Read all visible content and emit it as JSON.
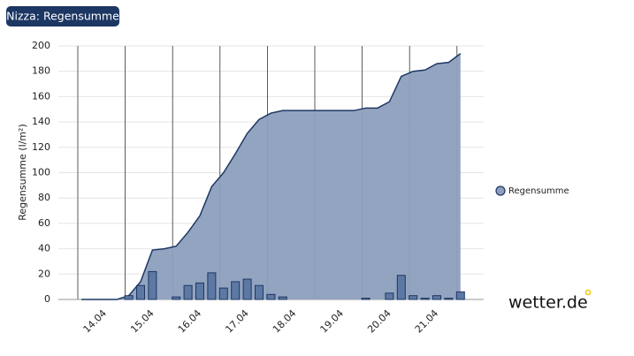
{
  "chart_data": {
    "type": "combo",
    "title": "Nizza: Regensumme",
    "y_label": "Regensumme (l/m²)",
    "logo": "wetter.de",
    "categories": [
      null,
      null,
      "14.04",
      null,
      null,
      null,
      "15.04",
      null,
      null,
      null,
      "16.04",
      null,
      null,
      null,
      "17.04",
      null,
      null,
      null,
      "18.04",
      null,
      null,
      null,
      "19.04",
      null,
      null,
      null,
      "20.04",
      null,
      null,
      null,
      "21.04",
      null,
      null
    ],
    "ylim": [
      0,
      200
    ],
    "yticks": [
      0,
      20,
      40,
      60,
      80,
      100,
      120,
      140,
      160,
      180,
      200
    ],
    "grid": true,
    "legend": "right",
    "series": [
      {
        "name": "Regensumme",
        "type": "area",
        "color": "#8d9fbd",
        "line_color": "#1d3764",
        "values": [
          0,
          0,
          0,
          0,
          3,
          14,
          39,
          40,
          42,
          53,
          66,
          89,
          100,
          115,
          131,
          142,
          147,
          149,
          149,
          149,
          149,
          149,
          149,
          149,
          151,
          151,
          156,
          176,
          180,
          181,
          186,
          187,
          194
        ]
      },
      {
        "type": "bar",
        "color": "#5d78a3",
        "line_color": "#1d3764",
        "values": [
          0,
          0,
          0,
          0,
          3,
          11,
          22,
          0,
          2,
          11,
          13,
          21,
          9,
          14,
          16,
          11,
          4,
          2,
          0,
          0,
          0,
          0,
          0,
          0,
          1,
          0,
          5,
          19,
          3,
          1,
          3,
          1,
          6
        ]
      }
    ]
  }
}
